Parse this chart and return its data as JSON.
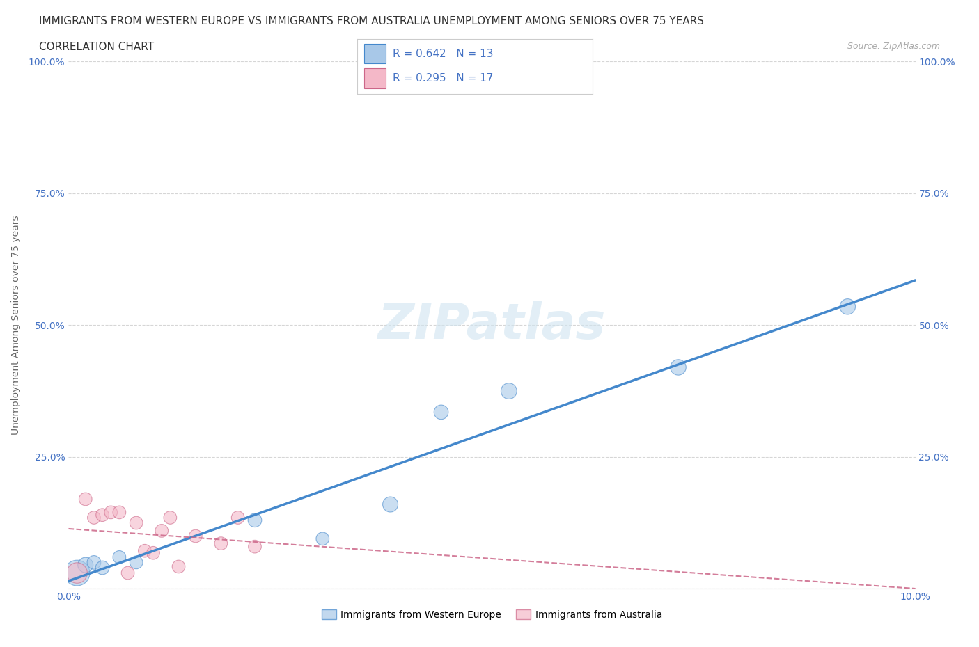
{
  "title_line1": "IMMIGRANTS FROM WESTERN EUROPE VS IMMIGRANTS FROM AUSTRALIA UNEMPLOYMENT AMONG SENIORS OVER 75 YEARS",
  "title_line2": "CORRELATION CHART",
  "source": "Source: ZipAtlas.com",
  "xlabel": "",
  "ylabel": "Unemployment Among Seniors over 75 years",
  "xlim": [
    0.0,
    0.1
  ],
  "ylim": [
    0.0,
    1.0
  ],
  "xticks": [
    0.0,
    0.02,
    0.04,
    0.06,
    0.08,
    0.1
  ],
  "yticks": [
    0.0,
    0.25,
    0.5,
    0.75,
    1.0
  ],
  "xtick_labels": [
    "0.0%",
    "",
    "",
    "",
    "",
    "10.0%"
  ],
  "ytick_labels": [
    "",
    "25.0%",
    "50.0%",
    "75.0%",
    "100.0%"
  ],
  "blue_color": "#a8c8e8",
  "pink_color": "#f4b8c8",
  "blue_line_color": "#4488cc",
  "pink_line_color": "#cc6688",
  "R_blue": 0.642,
  "N_blue": 13,
  "R_pink": 0.295,
  "N_pink": 17,
  "blue_x": [
    0.001,
    0.002,
    0.003,
    0.004,
    0.006,
    0.008,
    0.022,
    0.03,
    0.038,
    0.044,
    0.052,
    0.072,
    0.092
  ],
  "blue_y": [
    0.03,
    0.045,
    0.05,
    0.04,
    0.06,
    0.05,
    0.13,
    0.095,
    0.16,
    0.335,
    0.375,
    0.42,
    0.535
  ],
  "blue_sizes": [
    700,
    250,
    200,
    200,
    180,
    180,
    200,
    180,
    250,
    220,
    270,
    260,
    260
  ],
  "pink_x": [
    0.001,
    0.002,
    0.003,
    0.004,
    0.005,
    0.006,
    0.007,
    0.008,
    0.009,
    0.01,
    0.011,
    0.012,
    0.013,
    0.015,
    0.018,
    0.02,
    0.022
  ],
  "pink_y": [
    0.03,
    0.17,
    0.135,
    0.14,
    0.145,
    0.145,
    0.03,
    0.125,
    0.072,
    0.068,
    0.11,
    0.135,
    0.042,
    0.1,
    0.086,
    0.135,
    0.08
  ],
  "pink_sizes": [
    450,
    180,
    180,
    180,
    180,
    180,
    180,
    180,
    180,
    180,
    180,
    180,
    180,
    180,
    180,
    180,
    180
  ],
  "watermark": "ZIPatlas",
  "legend_label_blue": "Immigrants from Western Europe",
  "legend_label_pink": "Immigrants from Australia",
  "title_fontsize": 11,
  "label_fontsize": 10,
  "tick_fontsize": 10,
  "stat_color": "#4472c4",
  "grid_color": "#cccccc",
  "watermark_color": "#d0e4f0",
  "background_color": "#ffffff"
}
